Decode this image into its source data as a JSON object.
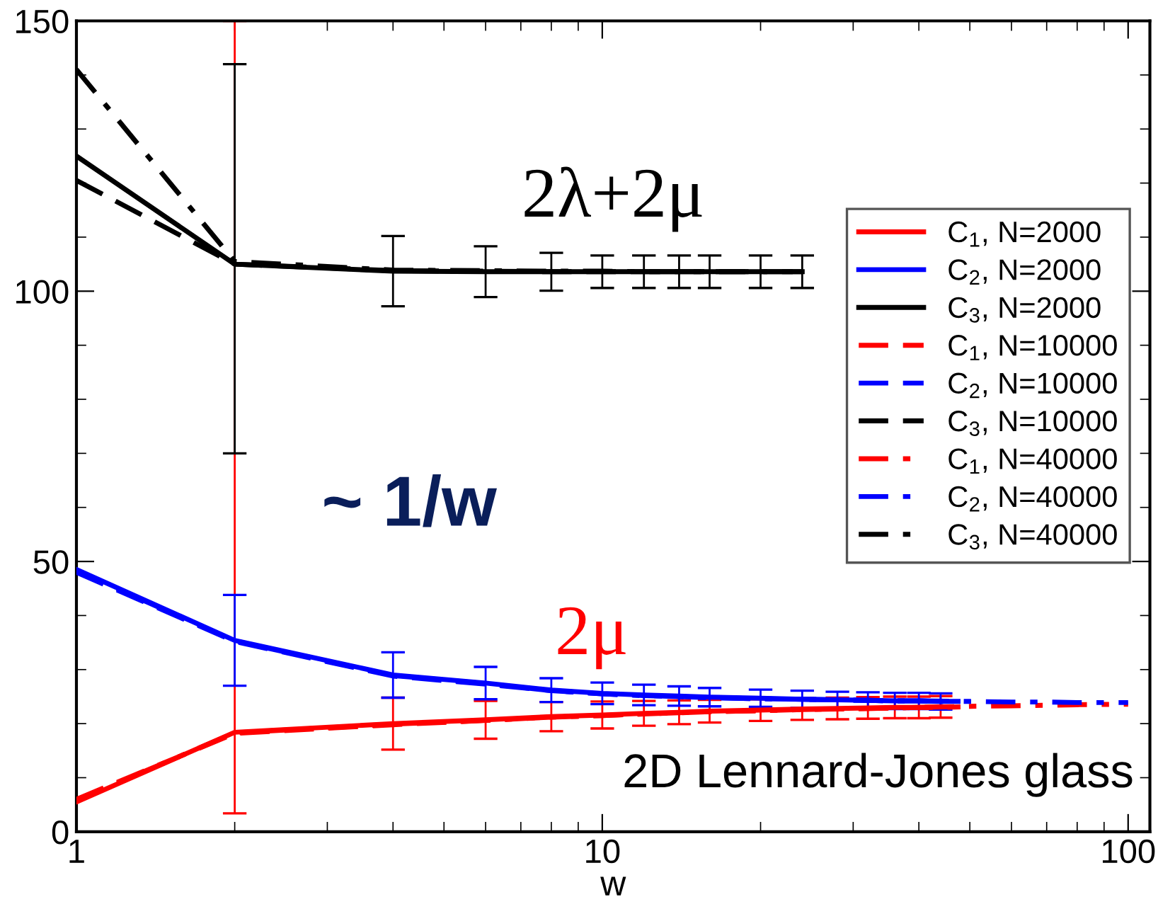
{
  "chart_data": {
    "type": "line",
    "xlabel": "w",
    "log": "x",
    "xlim": [
      1,
      110
    ],
    "xticks": [
      1,
      10,
      100
    ],
    "ylim": [
      0,
      150
    ],
    "yticks": [
      0,
      50,
      100,
      150
    ],
    "grid": false,
    "legend": "right",
    "marker": "none",
    "series": [
      {
        "name": "C$_{1}$, N=2000",
        "color": "#ff0000",
        "line_style": "solid",
        "x": [
          1,
          2,
          4,
          6,
          8,
          10,
          12,
          14,
          16,
          20,
          24,
          28,
          32,
          36,
          40,
          44
        ],
        "values": [
          5.5,
          18.4,
          20,
          20.7,
          21.3,
          21.6,
          21.9,
          22.1,
          22.3,
          22.5,
          22.7,
          22.8,
          22.9,
          23,
          23,
          23.1
        ],
        "errors": [
          null,
          [
            3.4,
            150
          ],
          4.8,
          3.5,
          2.7,
          2.5,
          2.3,
          2.2,
          2.1,
          2,
          2,
          2,
          2,
          2,
          2,
          2
        ]
      },
      {
        "name": "C$_{2}$, N=2000",
        "color": "#0000ff",
        "line_style": "solid",
        "x": [
          1,
          2,
          4,
          6,
          8,
          10,
          12,
          14,
          16,
          20,
          24,
          28,
          32,
          36,
          40,
          44
        ],
        "values": [
          48.5,
          35.4,
          29,
          27.5,
          26.2,
          25.6,
          25.3,
          25.1,
          24.9,
          24.7,
          24.5,
          24.4,
          24.3,
          24.2,
          24.2,
          24.1
        ],
        "errors": [
          null,
          8.4,
          4.2,
          3,
          2.2,
          2,
          1.9,
          1.8,
          1.7,
          1.6,
          1.6,
          1.5,
          1.5,
          1.5,
          1.5,
          1.5
        ]
      },
      {
        "name": "C$_{3}$, N=2000",
        "color": "#000000",
        "line_style": "solid",
        "x": [
          1,
          2,
          4,
          6,
          8,
          10,
          12,
          14,
          16,
          20,
          24
        ],
        "values": [
          125,
          105,
          103.7,
          103.6,
          103.6,
          103.6,
          103.6,
          103.6,
          103.6,
          103.6,
          103.6
        ],
        "errors": [
          null,
          [
            70,
            142
          ],
          6.5,
          4.7,
          3.5,
          3,
          3,
          3,
          3,
          3,
          3
        ]
      },
      {
        "name": "C$_{1}$, N=10000",
        "color": "#ff0000",
        "line_style": "dashed",
        "x": [
          1,
          2,
          4,
          6,
          8,
          10,
          12,
          14,
          16,
          20,
          24,
          28,
          32,
          36,
          40,
          44,
          48
        ],
        "values": [
          6,
          18.2,
          19.8,
          20.6,
          21.2,
          21.5,
          21.8,
          22,
          22.2,
          22.4,
          22.6,
          22.7,
          22.8,
          22.9,
          23,
          23,
          23.1
        ]
      },
      {
        "name": "C$_{2}$, N=10000",
        "color": "#0000ff",
        "line_style": "dashed",
        "x": [
          1,
          2,
          4,
          6,
          8,
          10,
          12,
          14,
          16,
          20,
          24,
          28,
          32,
          36,
          40,
          44,
          48
        ],
        "values": [
          48,
          35.2,
          28.8,
          27.3,
          26.1,
          25.5,
          25.2,
          25,
          24.8,
          24.6,
          24.5,
          24.4,
          24.3,
          24.2,
          24.2,
          24.1,
          24.1
        ]
      },
      {
        "name": "C$_{3}$, N=10000",
        "color": "#000000",
        "line_style": "dashed",
        "x": [
          1,
          2,
          4,
          6,
          8,
          10,
          12,
          14,
          16,
          20,
          24
        ],
        "values": [
          120.5,
          105,
          103.8,
          103.7,
          103.6,
          103.6,
          103.6,
          103.6,
          103.6,
          103.6,
          103.6
        ]
      },
      {
        "name": "C$_{1}$, N=40000",
        "color": "#ff0000",
        "line_style": "dashdot",
        "x": [
          1,
          2,
          4,
          6,
          8,
          10,
          12,
          14,
          16,
          20,
          24,
          28,
          32,
          36,
          40,
          50,
          60,
          70,
          80,
          100
        ],
        "values": [
          5.8,
          18.3,
          19.9,
          20.6,
          21.2,
          21.5,
          21.8,
          22,
          22.2,
          22.4,
          22.6,
          22.7,
          22.8,
          22.9,
          23,
          23.2,
          23.3,
          23.4,
          23.5,
          23.6
        ]
      },
      {
        "name": "C$_{2}$, N=40000",
        "color": "#0000ff",
        "line_style": "dashdot",
        "x": [
          1,
          2,
          4,
          6,
          8,
          10,
          12,
          14,
          16,
          20,
          24,
          28,
          32,
          36,
          40,
          50,
          60,
          70,
          80,
          100
        ],
        "values": [
          48.3,
          35.3,
          28.9,
          27.4,
          26.1,
          25.5,
          25.2,
          25,
          24.8,
          24.6,
          24.5,
          24.4,
          24.3,
          24.2,
          24.2,
          24.1,
          24,
          24,
          23.9,
          23.9
        ]
      },
      {
        "name": "C$_{3}$, N=40000",
        "color": "#000000",
        "line_style": "dashdot",
        "x": [
          1,
          2,
          4,
          6,
          8,
          10,
          12,
          14,
          16,
          20,
          24
        ],
        "values": [
          141,
          105.5,
          103.9,
          103.8,
          103.7,
          103.7,
          103.6,
          103.6,
          103.6,
          103.6,
          103.6
        ]
      }
    ],
    "annotations": [
      "2λ+2μ",
      "~ 1/w",
      "2μ",
      "2D Lennard-Jones glass"
    ]
  }
}
